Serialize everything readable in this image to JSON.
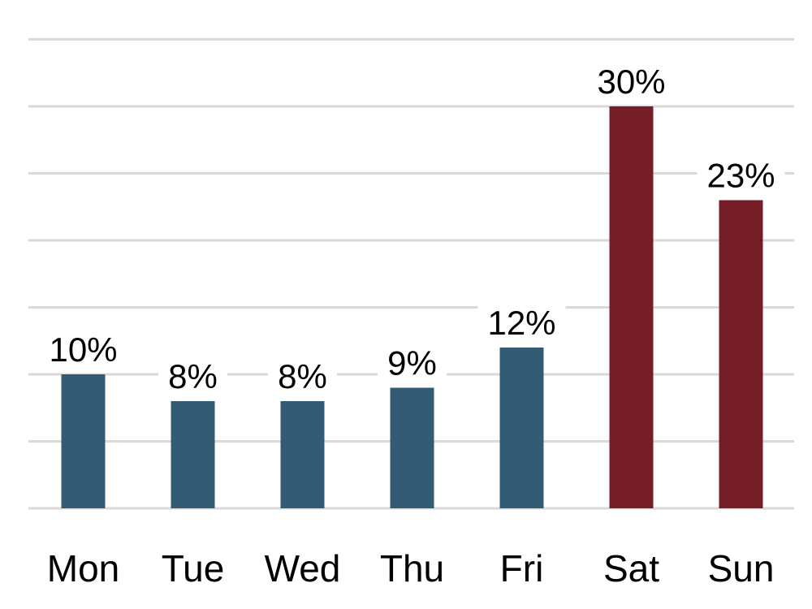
{
  "chart_data": {
    "type": "bar",
    "categories": [
      "Mon",
      "Tue",
      "Wed",
      "Thu",
      "Fri",
      "Sat",
      "Sun"
    ],
    "values": [
      10,
      8,
      8,
      9,
      12,
      30,
      23
    ],
    "value_labels": [
      "10%",
      "8%",
      "8%",
      "9%",
      "12%",
      "30%",
      "23%"
    ],
    "unit": "%",
    "ylim": [
      0,
      35
    ],
    "grid": true,
    "legend": "none",
    "title": "",
    "xlabel": "",
    "ylabel": "",
    "colors": {
      "weekday": "#335B74",
      "weekend": "#761E27",
      "grid": "#D9D9D9"
    },
    "bar_colors": [
      "weekday",
      "weekday",
      "weekday",
      "weekday",
      "weekday",
      "weekend",
      "weekend"
    ]
  }
}
